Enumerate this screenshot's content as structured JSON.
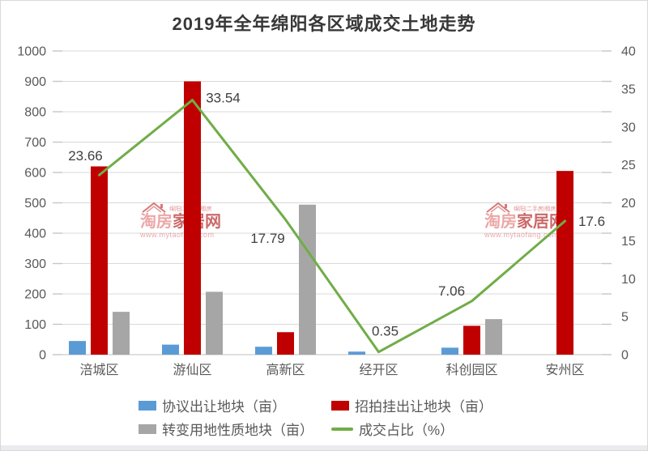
{
  "title": "2019年全年绵阳各区域成交土地走势",
  "chart_data": {
    "type": "bar",
    "subtype": "grouped-bars-with-line",
    "title": "2019年全年绵阳各区域成交土地走势",
    "categories": [
      "涪城区",
      "游仙区",
      "高新区",
      "经开区",
      "科创园区",
      "安州区"
    ],
    "series": [
      {
        "name": "协议出让地块（亩）",
        "type": "bar",
        "axis": "left",
        "color": "#5b9bd5",
        "values": [
          45,
          33,
          26,
          10,
          23,
          0
        ]
      },
      {
        "name": "招拍挂出让地块（亩）",
        "type": "bar",
        "axis": "left",
        "color": "#c00000",
        "values": [
          620,
          900,
          74,
          0,
          95,
          605
        ]
      },
      {
        "name": "转变用地性质地块（亩）",
        "type": "bar",
        "axis": "left",
        "color": "#a6a6a6",
        "values": [
          141,
          207,
          494,
          0,
          117,
          0
        ]
      },
      {
        "name": "成交占比（%）",
        "type": "line",
        "axis": "right",
        "color": "#70ad47",
        "values": [
          23.66,
          33.54,
          17.79,
          0.35,
          7.06,
          17.6
        ],
        "labels": [
          "23.66",
          "33.54",
          "17.79",
          "0.35",
          "7.06",
          "17.6"
        ]
      }
    ],
    "left_axis": {
      "min": 0,
      "max": 1000,
      "step": 100,
      "ticks": [
        "0",
        "100",
        "200",
        "300",
        "400",
        "500",
        "600",
        "700",
        "800",
        "900",
        "1000"
      ]
    },
    "right_axis": {
      "min": 0,
      "max": 40,
      "step": 5,
      "ticks": [
        "0",
        "5",
        "10",
        "15",
        "20",
        "25",
        "30",
        "35",
        "40"
      ]
    },
    "grid": true,
    "legend_position": "bottom",
    "colors": {
      "grid": "#d9d9d9",
      "axis_line": "#bfbfbf",
      "tick_text": "#595959",
      "data_label": "#404040"
    }
  },
  "watermark": {
    "tagline": "绵阳|二手房|租房",
    "site_name_light": "淘房",
    "site_name_dark": "家居网",
    "site_url": "www.mytaofang.com"
  }
}
